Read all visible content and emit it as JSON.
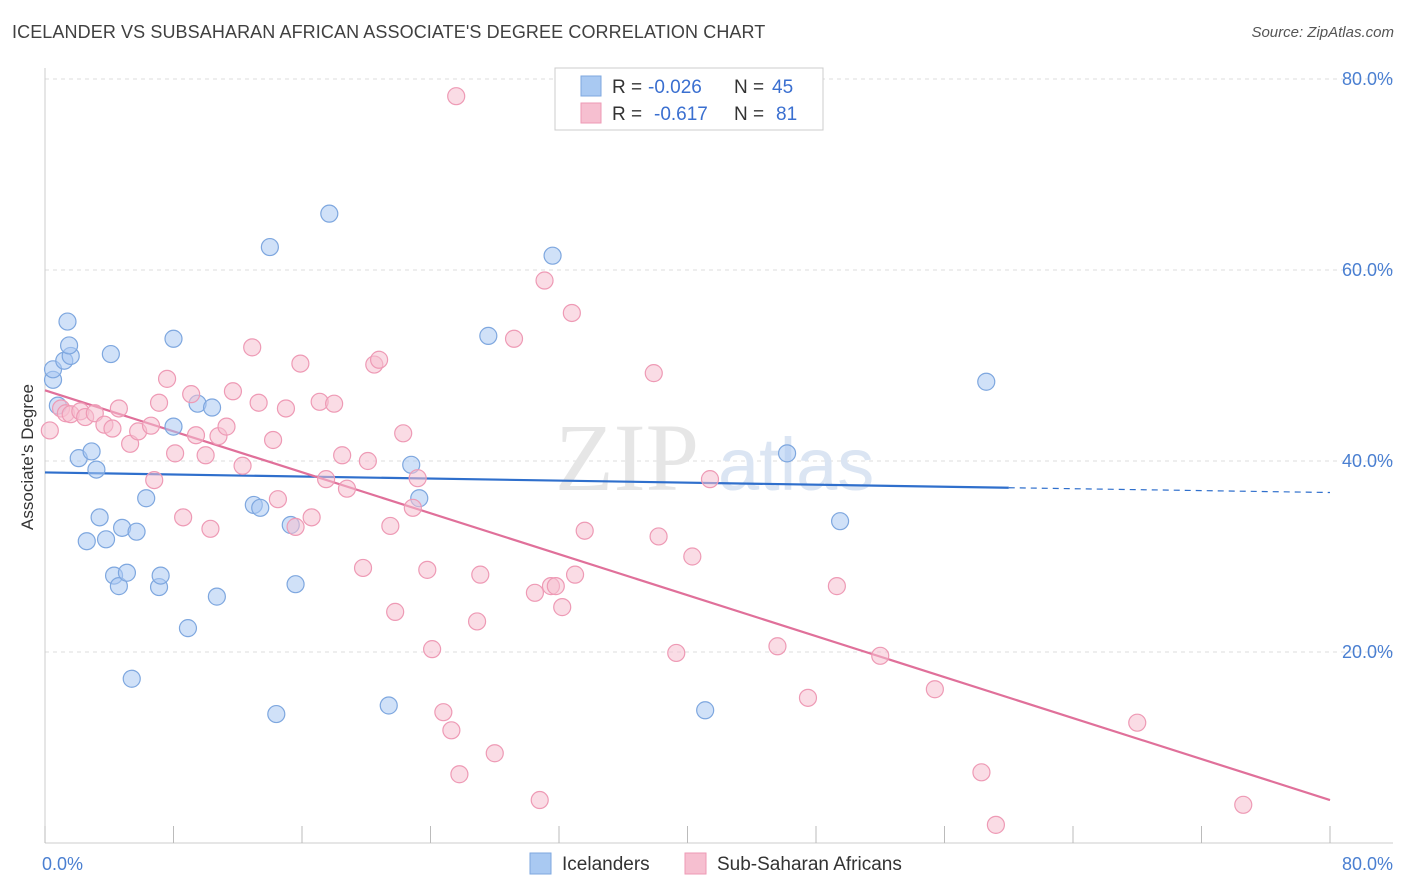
{
  "title": "ICELANDER VS SUBSAHARAN AFRICAN ASSOCIATE'S DEGREE CORRELATION CHART",
  "source": "Source: ZipAtlas.com",
  "watermark": {
    "zip": "ZIP",
    "atlas": "atlas"
  },
  "colors": {
    "blue_fill": "#a9c9f2",
    "blue_stroke": "#7ea7df",
    "blue_line": "#2f6fcc",
    "pink_fill": "#f6bfd0",
    "pink_stroke": "#ee9ab5",
    "pink_line": "#e0709a",
    "grid": "#dddddd",
    "axis_label": "#4a7fd1"
  },
  "legend": {
    "rows": [
      {
        "r_label": "R =",
        "r_value": "-0.026",
        "n_label": "N =",
        "n_value": "45"
      },
      {
        "r_label": "R =",
        "r_value": "-0.617",
        "n_label": "N =",
        "n_value": "81"
      }
    ]
  },
  "bottom_legend": [
    "Icelanders",
    "Sub-Saharan Africans"
  ],
  "chart_data": {
    "type": "scatter",
    "title": "ICELANDER VS SUBSAHARAN AFRICAN ASSOCIATE'S DEGREE CORRELATION CHART",
    "xlabel": "",
    "ylabel": "Associate's Degree",
    "xlim": [
      0,
      80
    ],
    "ylim": [
      0,
      80
    ],
    "x_tick_labels": [
      "0.0%",
      "80.0%"
    ],
    "y_tick_labels": [
      "20.0%",
      "40.0%",
      "60.0%",
      "80.0%"
    ],
    "y_ticks": [
      20,
      40,
      60,
      80
    ],
    "grid": true,
    "series": [
      {
        "name": "Icelanders",
        "R": -0.026,
        "N": 45,
        "trend": {
          "x0": 0,
          "y0": 38.8,
          "x1": 60,
          "y1": 37.2,
          "dash_to_x": 80,
          "dash_to_y": 36.7
        },
        "points": [
          [
            0.5,
            48.5
          ],
          [
            0.5,
            49.6
          ],
          [
            1.2,
            50.5
          ],
          [
            1.6,
            51.0
          ],
          [
            1.5,
            52.1
          ],
          [
            1.4,
            54.6
          ],
          [
            0.8,
            45.8
          ],
          [
            2.1,
            40.3
          ],
          [
            2.9,
            41.0
          ],
          [
            3.2,
            39.1
          ],
          [
            3.4,
            34.1
          ],
          [
            2.6,
            31.6
          ],
          [
            3.8,
            31.8
          ],
          [
            4.1,
            51.2
          ],
          [
            4.3,
            28.0
          ],
          [
            4.6,
            26.9
          ],
          [
            5.1,
            28.3
          ],
          [
            4.8,
            33.0
          ],
          [
            5.7,
            32.6
          ],
          [
            6.3,
            36.1
          ],
          [
            7.1,
            26.8
          ],
          [
            7.2,
            28.0
          ],
          [
            8.0,
            43.6
          ],
          [
            8.0,
            52.8
          ],
          [
            8.9,
            22.5
          ],
          [
            9.5,
            46.0
          ],
          [
            10.4,
            45.6
          ],
          [
            10.7,
            25.8
          ],
          [
            13.0,
            35.4
          ],
          [
            13.4,
            35.1
          ],
          [
            14.0,
            62.4
          ],
          [
            14.4,
            13.5
          ],
          [
            15.3,
            33.3
          ],
          [
            15.6,
            27.1
          ],
          [
            17.7,
            65.9
          ],
          [
            21.4,
            14.4
          ],
          [
            22.8,
            39.6
          ],
          [
            23.3,
            36.1
          ],
          [
            27.6,
            53.1
          ],
          [
            31.6,
            61.5
          ],
          [
            41.1,
            13.9
          ],
          [
            46.2,
            40.8
          ],
          [
            49.5,
            33.7
          ],
          [
            58.6,
            48.3
          ],
          [
            5.4,
            17.2
          ]
        ]
      },
      {
        "name": "Sub-Saharan Africans",
        "R": -0.617,
        "N": 81,
        "trend": {
          "x0": 0,
          "y0": 47.4,
          "x1": 80,
          "y1": 4.5
        },
        "points": [
          [
            0.3,
            43.2
          ],
          [
            1.0,
            45.5
          ],
          [
            1.3,
            45.0
          ],
          [
            1.6,
            44.9
          ],
          [
            2.2,
            45.2
          ],
          [
            2.5,
            44.6
          ],
          [
            3.1,
            45.0
          ],
          [
            3.7,
            43.8
          ],
          [
            4.6,
            45.5
          ],
          [
            4.2,
            43.4
          ],
          [
            5.3,
            41.8
          ],
          [
            5.8,
            43.1
          ],
          [
            6.6,
            43.7
          ],
          [
            6.8,
            38.0
          ],
          [
            7.1,
            46.1
          ],
          [
            7.6,
            48.6
          ],
          [
            8.1,
            40.8
          ],
          [
            8.6,
            34.1
          ],
          [
            9.1,
            47.0
          ],
          [
            9.4,
            42.7
          ],
          [
            10.0,
            40.6
          ],
          [
            10.3,
            32.9
          ],
          [
            10.8,
            42.6
          ],
          [
            11.3,
            43.6
          ],
          [
            11.7,
            47.3
          ],
          [
            12.3,
            39.5
          ],
          [
            12.9,
            51.9
          ],
          [
            13.3,
            46.1
          ],
          [
            14.2,
            42.2
          ],
          [
            14.5,
            36.0
          ],
          [
            15.0,
            45.5
          ],
          [
            15.6,
            33.1
          ],
          [
            15.9,
            50.2
          ],
          [
            16.6,
            34.1
          ],
          [
            17.1,
            46.2
          ],
          [
            17.5,
            38.1
          ],
          [
            18.0,
            46.0
          ],
          [
            18.5,
            40.6
          ],
          [
            18.8,
            37.1
          ],
          [
            19.8,
            28.8
          ],
          [
            20.1,
            40.0
          ],
          [
            20.5,
            50.1
          ],
          [
            20.8,
            50.6
          ],
          [
            21.5,
            33.2
          ],
          [
            21.8,
            24.2
          ],
          [
            22.3,
            42.9
          ],
          [
            22.9,
            35.1
          ],
          [
            23.2,
            38.2
          ],
          [
            23.8,
            28.6
          ],
          [
            24.1,
            20.3
          ],
          [
            24.8,
            13.7
          ],
          [
            25.3,
            11.8
          ],
          [
            25.8,
            7.2
          ],
          [
            25.6,
            78.2
          ],
          [
            26.9,
            23.2
          ],
          [
            27.1,
            28.1
          ],
          [
            28.0,
            9.4
          ],
          [
            29.2,
            52.8
          ],
          [
            30.5,
            26.2
          ],
          [
            30.8,
            4.5
          ],
          [
            31.1,
            58.9
          ],
          [
            31.5,
            26.9
          ],
          [
            31.8,
            26.9
          ],
          [
            32.2,
            24.7
          ],
          [
            32.8,
            55.5
          ],
          [
            33.0,
            28.1
          ],
          [
            33.6,
            32.7
          ],
          [
            37.9,
            49.2
          ],
          [
            38.2,
            32.1
          ],
          [
            39.3,
            19.9
          ],
          [
            40.3,
            30.0
          ],
          [
            41.4,
            38.1
          ],
          [
            45.6,
            20.6
          ],
          [
            47.5,
            15.2
          ],
          [
            49.3,
            26.9
          ],
          [
            52.0,
            19.6
          ],
          [
            55.4,
            16.1
          ],
          [
            58.3,
            7.4
          ],
          [
            59.2,
            1.9
          ],
          [
            68.0,
            12.6
          ],
          [
            74.6,
            4.0
          ]
        ]
      }
    ]
  }
}
